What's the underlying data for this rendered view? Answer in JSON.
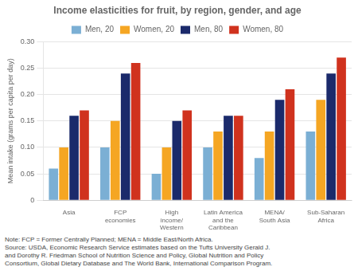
{
  "chart_data": {
    "type": "bar",
    "title": "Income elasticities for fruit, by region, gender, and age",
    "ylabel": "Mean intake (grams per capita per day)",
    "categories": [
      "Asia",
      "FCP\neconomies",
      "High\nincome/\nWestern",
      "Latin America\nand the\nCaribbean",
      "MENA/\nSouth Asia",
      "Sub-Saharan\nAfrica"
    ],
    "series": [
      {
        "name": "Men, 20",
        "color": "#7BAFD4",
        "values": [
          0.06,
          0.1,
          0.05,
          0.1,
          0.08,
          0.13
        ]
      },
      {
        "name": "Women, 20",
        "color": "#F5A623",
        "values": [
          0.1,
          0.15,
          0.1,
          0.13,
          0.13,
          0.19
        ]
      },
      {
        "name": "Men, 80",
        "color": "#1B2A6B",
        "values": [
          0.16,
          0.24,
          0.15,
          0.16,
          0.19,
          0.24
        ]
      },
      {
        "name": "Women, 80",
        "color": "#D0321E",
        "values": [
          0.17,
          0.26,
          0.17,
          0.16,
          0.21,
          0.27
        ]
      }
    ],
    "ylim": [
      0,
      0.3
    ],
    "yticks": [
      0,
      0.05,
      {
        "value": 0.1,
        "label": "0.10"
      },
      0.15,
      {
        "value": 0.2,
        "label": "0.20"
      },
      0.25,
      {
        "value": 0.3,
        "label": "0.30"
      }
    ],
    "grid": true,
    "legend": "top",
    "annotations": [
      "Note: FCP = Former Centrally Planned; MENA = Middle East/North Africa.",
      "Source: USDA, Economic Research Service estimates based on the Tufts University Gerald J.",
      "and Dorothy R. Friedman School of Nutrition Science and Policy, Global Nutrition and Policy",
      "Consortium, Global Dietary Database and The World Bank, International Comparison Program."
    ]
  }
}
